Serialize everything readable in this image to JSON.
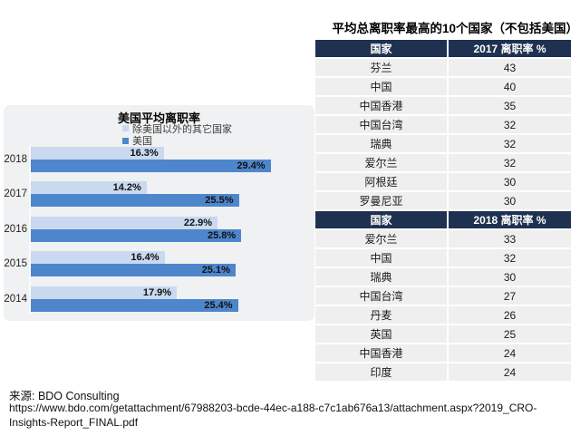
{
  "colors": {
    "panel_bg": "#f0f1f2",
    "table_header_bg": "#1e3150",
    "table_row_bg": "#efefef",
    "us_bar": "#4e86cc",
    "other_countries_bar": "#c9d9f0"
  },
  "chart_data": [
    {
      "type": "bar",
      "orientation": "horizontal",
      "title": "美国平均离职率",
      "categories": [
        "2018",
        "2017",
        "2016",
        "2015",
        "2014"
      ],
      "series": [
        {
          "name": "除美国以外的其它国家",
          "color": "#c9d9f0",
          "values": [
            16.3,
            14.2,
            22.9,
            16.4,
            17.9
          ]
        },
        {
          "name": "美国",
          "color": "#4e86cc",
          "values": [
            29.4,
            25.5,
            25.8,
            25.1,
            25.4
          ]
        }
      ],
      "value_suffix": "%",
      "xlim": [
        0,
        32
      ],
      "grid": false,
      "legend_position": "top-center"
    },
    {
      "type": "table",
      "title": "平均总离职率最高的10个国家（不包括美国）",
      "headers": [
        "国家",
        "2017 离职率 %"
      ],
      "rows": [
        [
          "芬兰",
          43
        ],
        [
          "中国",
          40
        ],
        [
          "中国香港",
          35
        ],
        [
          "中国台湾",
          32
        ],
        [
          "瑞典",
          32
        ],
        [
          "爱尔兰",
          32
        ],
        [
          "阿根廷",
          30
        ],
        [
          "罗曼尼亚",
          30
        ]
      ]
    },
    {
      "type": "table",
      "headers": [
        "国家",
        "2018 离职率 %"
      ],
      "rows": [
        [
          "爱尔兰",
          33
        ],
        [
          "中国",
          32
        ],
        [
          "瑞典",
          30
        ],
        [
          "中国台湾",
          27
        ],
        [
          "丹麦",
          26
        ],
        [
          "英国",
          25
        ],
        [
          "中国香港",
          24
        ],
        [
          "印度",
          24
        ]
      ]
    }
  ],
  "footer": {
    "source": "来源: BDO Consulting",
    "url_lines": [
      "https://www.bdo.com/getattachment/67988203-bcde-44ec-a188-c7c1ab676a13/attachment.aspx?2019_CRO-",
      "Insights-Report_FINAL.pdf"
    ]
  }
}
